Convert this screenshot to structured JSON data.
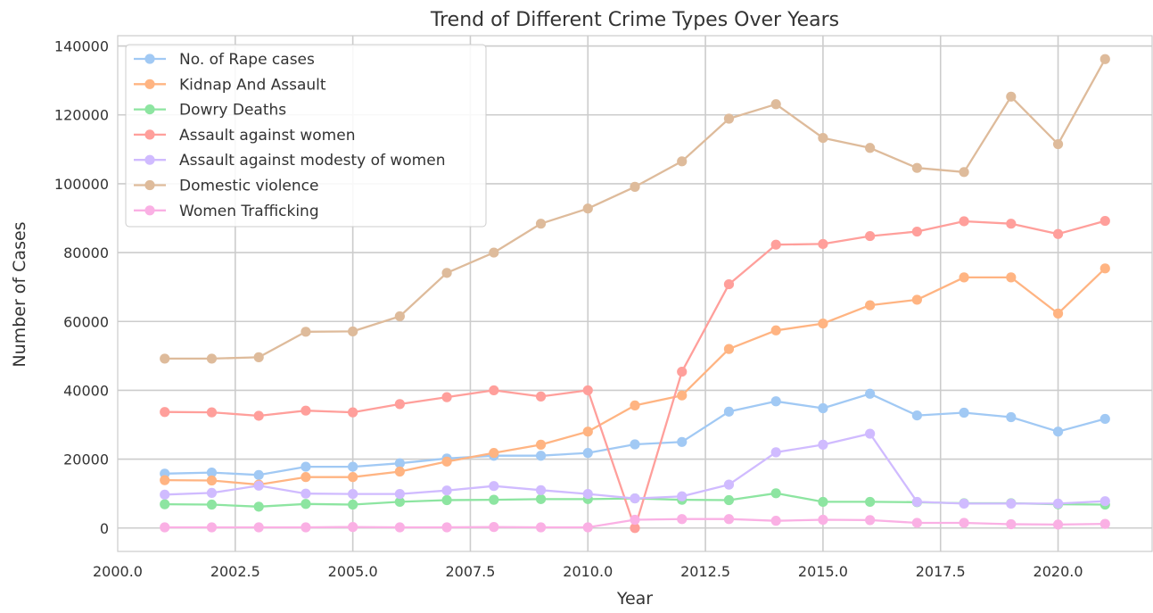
{
  "chart_data": {
    "type": "line",
    "title": "Trend of Different Crime Types Over Years",
    "xlabel": "Year",
    "ylabel": "Number of Cases",
    "xlim": [
      2000.0,
      2022.0
    ],
    "ylim": [
      -6800,
      143000
    ],
    "x_ticks": [
      2000.0,
      2002.5,
      2005.0,
      2007.5,
      2010.0,
      2012.5,
      2015.0,
      2017.5,
      2020.0
    ],
    "x_tick_labels": [
      "2000.0",
      "2002.5",
      "2005.0",
      "2007.5",
      "2010.0",
      "2012.5",
      "2015.0",
      "2017.5",
      "2020.0"
    ],
    "y_ticks": [
      0,
      20000,
      40000,
      60000,
      80000,
      100000,
      120000,
      140000
    ],
    "y_tick_labels": [
      "0",
      "20000",
      "40000",
      "60000",
      "80000",
      "100000",
      "120000",
      "140000"
    ],
    "grid": true,
    "legend_position": "top-left",
    "x": [
      2001,
      2002,
      2003,
      2004,
      2005,
      2006,
      2007,
      2008,
      2009,
      2010,
      2011,
      2012,
      2013,
      2014,
      2015,
      2016,
      2017,
      2018,
      2019,
      2020,
      2021
    ],
    "series": [
      {
        "name": "No. of Rape cases",
        "color": "#a1c9f4",
        "values": [
          15800,
          16100,
          15400,
          17800,
          17800,
          18800,
          20200,
          21000,
          21000,
          21800,
          24300,
          25000,
          33800,
          36800,
          34800,
          39000,
          32700,
          33500,
          32200,
          28000,
          31700
        ]
      },
      {
        "name": "Kidnap And Assault",
        "color": "#ffb482",
        "values": [
          13900,
          13800,
          12600,
          14800,
          14800,
          16400,
          19300,
          21800,
          24200,
          28000,
          35600,
          38500,
          52000,
          57400,
          59400,
          64700,
          66300,
          72800,
          72800,
          62300,
          75400
        ]
      },
      {
        "name": "Dowry Deaths",
        "color": "#8de5a1",
        "values": [
          6900,
          6800,
          6200,
          7000,
          6800,
          7600,
          8100,
          8200,
          8400,
          8400,
          8600,
          8200,
          8100,
          10100,
          7600,
          7600,
          7500,
          7200,
          7200,
          6900,
          6800
        ]
      },
      {
        "name": "Assault against women",
        "color": "#ff9f9b",
        "values": [
          33700,
          33600,
          32600,
          34100,
          33600,
          36000,
          38000,
          40000,
          38200,
          40000,
          0,
          45400,
          70800,
          82300,
          82500,
          84800,
          86100,
          89100,
          88400,
          85400,
          89200
        ]
      },
      {
        "name": "Assault against modesty of women",
        "color": "#d0bbff",
        "values": [
          9700,
          10200,
          12300,
          10000,
          9900,
          9900,
          10900,
          12200,
          11000,
          9900,
          8600,
          9200,
          12600,
          22000,
          24200,
          27400,
          7600,
          7100,
          7100,
          7100,
          7800
        ]
      },
      {
        "name": "Domestic violence",
        "color": "#debb9b",
        "values": [
          49200,
          49200,
          49600,
          57000,
          57100,
          61500,
          74100,
          80000,
          88400,
          92800,
          99100,
          106500,
          118900,
          123100,
          113300,
          110400,
          104600,
          103400,
          125300,
          111500,
          136200
        ]
      },
      {
        "name": "Women Trafficking",
        "color": "#fab0e4",
        "values": [
          200,
          200,
          200,
          200,
          300,
          200,
          200,
          300,
          200,
          200,
          2400,
          2600,
          2600,
          2100,
          2400,
          2300,
          1500,
          1500,
          1100,
          1000,
          1200
        ]
      }
    ]
  }
}
